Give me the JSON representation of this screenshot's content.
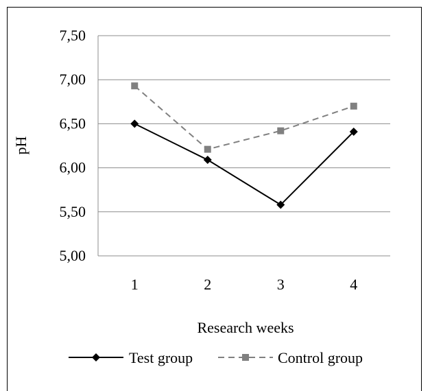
{
  "chart_data": {
    "type": "line",
    "xlabel": "Research weeks",
    "ylabel": "pH",
    "categories": [
      "1",
      "2",
      "3",
      "4"
    ],
    "ylim": [
      5.0,
      7.5
    ],
    "yticks": [
      "5,00",
      "5,50",
      "6,00",
      "6,50",
      "7,00",
      "7,50"
    ],
    "ytick_values": [
      5.0,
      5.5,
      6.0,
      6.5,
      7.0,
      7.5
    ],
    "grid": true,
    "legend_position": "bottom",
    "series": [
      {
        "name": "Test group",
        "values": [
          6.5,
          6.09,
          5.58,
          6.41
        ],
        "color": "#000000",
        "marker": "diamond",
        "dash": "solid"
      },
      {
        "name": "Control group",
        "values": [
          6.93,
          6.21,
          6.42,
          6.7
        ],
        "color": "#808080",
        "marker": "square",
        "dash": "dashed"
      }
    ]
  }
}
